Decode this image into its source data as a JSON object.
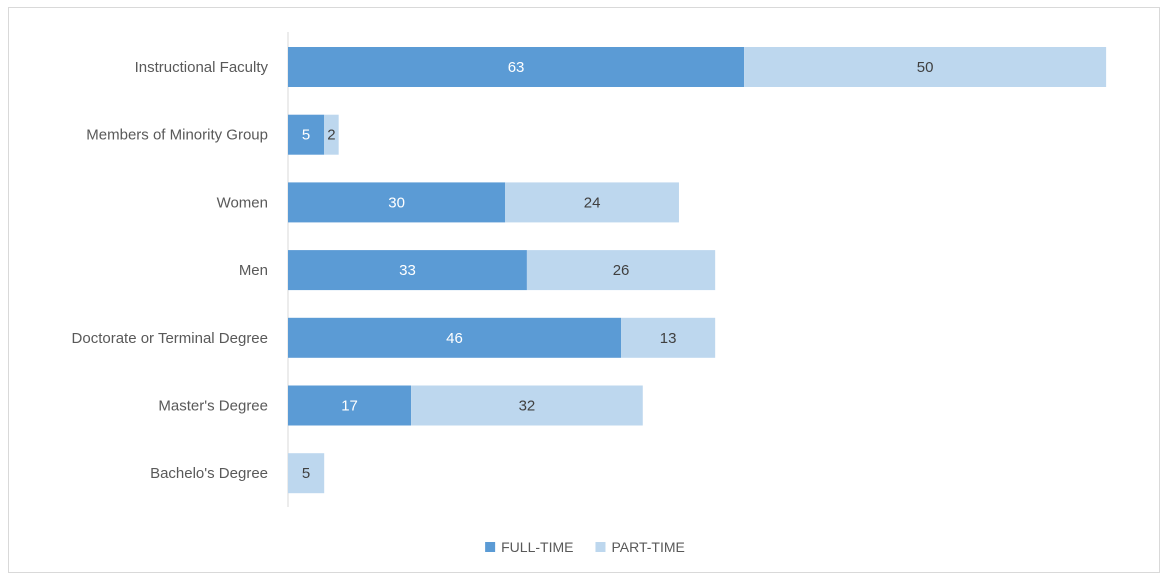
{
  "chart_data": {
    "type": "bar",
    "orientation": "horizontal",
    "stacked": true,
    "categories": [
      "Instructional Faculty",
      "Members of Minority Group",
      "Women",
      "Men",
      "Doctorate or Terminal Degree",
      "Master's Degree",
      "Bachelo's Degree"
    ],
    "series": [
      {
        "name": "FULL-TIME",
        "color": "#5b9bd5",
        "label_color": "#ffffff",
        "values": [
          63,
          5,
          30,
          33,
          46,
          17,
          0
        ]
      },
      {
        "name": "PART-TIME",
        "color": "#bdd7ee",
        "label_color": "#404040",
        "values": [
          50,
          2,
          24,
          26,
          13,
          32,
          5
        ]
      }
    ],
    "xlim": [
      0,
      120
    ],
    "grid": false,
    "legend_position": "bottom",
    "title": "",
    "xlabel": "",
    "ylabel": ""
  }
}
